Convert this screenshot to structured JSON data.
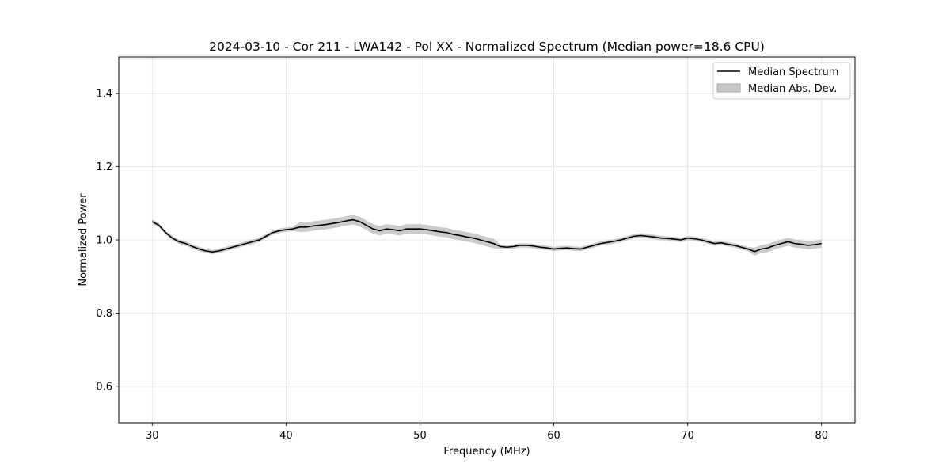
{
  "chart_data": {
    "type": "line",
    "title": "2024-03-10 - Cor 211 - LWA142 - Pol XX - Normalized Spectrum (Median power=18.6 CPU)",
    "xlabel": "Frequency (MHz)",
    "ylabel": "Normalized Power",
    "xlim": [
      27.5,
      82.5
    ],
    "ylim": [
      0.5,
      1.5
    ],
    "xticks": [
      30,
      40,
      50,
      60,
      70,
      80
    ],
    "xtick_labels": [
      "30",
      "40",
      "50",
      "60",
      "70",
      "80"
    ],
    "yticks": [
      0.6,
      0.8,
      1.0,
      1.2,
      1.4
    ],
    "ytick_labels": [
      "0.6",
      "0.8",
      "1.0",
      "1.2",
      "1.4"
    ],
    "grid": true,
    "legend_position": "top-right",
    "legend": [
      {
        "label": "Median Spectrum",
        "kind": "line",
        "color": "#000000"
      },
      {
        "label": "Median Abs. Dev.",
        "kind": "band",
        "color": "#c8c8c8"
      }
    ],
    "series": [
      {
        "name": "Median Spectrum",
        "x": [
          30,
          30.5,
          31,
          31.5,
          32,
          32.5,
          33,
          33.5,
          34,
          34.5,
          35,
          35.5,
          36,
          36.5,
          37,
          37.5,
          38,
          38.5,
          39,
          39.5,
          40,
          40.5,
          41,
          41.5,
          42,
          42.5,
          43,
          43.5,
          44,
          44.5,
          45,
          45.5,
          46,
          46.5,
          47,
          47.5,
          48,
          48.5,
          49,
          49.5,
          50,
          50.5,
          51,
          51.5,
          52,
          52.5,
          53,
          53.5,
          54,
          54.5,
          55,
          55.5,
          56,
          56.5,
          57,
          57.5,
          58,
          58.5,
          59,
          59.5,
          60,
          60.5,
          61,
          61.5,
          62,
          62.5,
          63,
          63.5,
          64,
          64.5,
          65,
          65.5,
          66,
          66.5,
          67,
          67.5,
          68,
          68.5,
          69,
          69.5,
          70,
          70.5,
          71,
          71.5,
          72,
          72.5,
          73,
          73.5,
          74,
          74.5,
          75,
          75.5,
          76,
          76.5,
          77,
          77.5,
          78,
          78.5,
          79,
          79.5,
          80
        ],
        "y": [
          1.05,
          1.04,
          1.02,
          1.005,
          0.995,
          0.99,
          0.982,
          0.975,
          0.97,
          0.967,
          0.97,
          0.975,
          0.98,
          0.985,
          0.99,
          0.995,
          1.0,
          1.01,
          1.02,
          1.025,
          1.028,
          1.03,
          1.035,
          1.035,
          1.038,
          1.04,
          1.042,
          1.045,
          1.048,
          1.052,
          1.055,
          1.05,
          1.04,
          1.03,
          1.025,
          1.03,
          1.028,
          1.025,
          1.03,
          1.03,
          1.03,
          1.028,
          1.025,
          1.022,
          1.02,
          1.015,
          1.012,
          1.008,
          1.005,
          1.0,
          0.995,
          0.99,
          0.982,
          0.98,
          0.982,
          0.985,
          0.985,
          0.983,
          0.98,
          0.978,
          0.975,
          0.977,
          0.978,
          0.976,
          0.975,
          0.98,
          0.985,
          0.99,
          0.993,
          0.996,
          1.0,
          1.005,
          1.01,
          1.012,
          1.01,
          1.008,
          1.005,
          1.004,
          1.002,
          1.0,
          1.005,
          1.003,
          1.0,
          0.995,
          0.99,
          0.992,
          0.988,
          0.985,
          0.98,
          0.975,
          0.968,
          0.975,
          0.978,
          0.985,
          0.99,
          0.995,
          0.99,
          0.988,
          0.985,
          0.987,
          0.99
        ]
      }
    ]
  }
}
